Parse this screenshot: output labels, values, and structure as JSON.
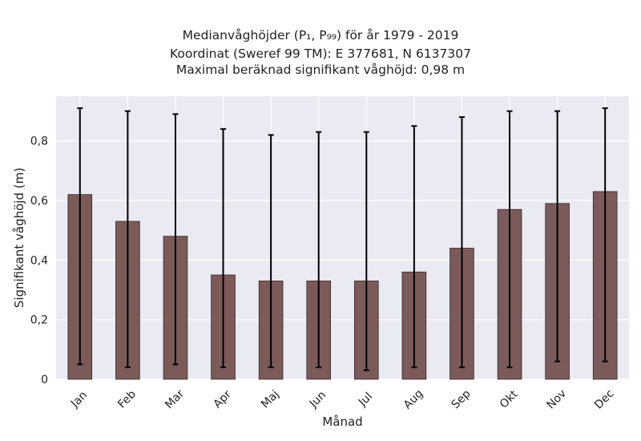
{
  "chart_data": {
    "type": "bar",
    "title_lines": [
      "Medianvåghöjder (P₁, P₉₉) för år 1979 - 2019",
      "Koordinat (Sweref 99 TM): E 377681, N 6137307",
      "Maximal beräknad signifikant våghöjd: 0,98 m"
    ],
    "xlabel": "Månad",
    "ylabel": "Signifikant våghöjd (m)",
    "categories": [
      "Jan",
      "Feb",
      "Mar",
      "Apr",
      "Maj",
      "Jun",
      "Jul",
      "Aug",
      "Sep",
      "Okt",
      "Nov",
      "Dec"
    ],
    "values": [
      0.62,
      0.53,
      0.48,
      0.35,
      0.33,
      0.33,
      0.33,
      0.36,
      0.44,
      0.57,
      0.59,
      0.63
    ],
    "p1": [
      0.05,
      0.04,
      0.05,
      0.04,
      0.04,
      0.04,
      0.03,
      0.04,
      0.04,
      0.04,
      0.06,
      0.06
    ],
    "p99": [
      0.91,
      0.9,
      0.89,
      0.84,
      0.82,
      0.83,
      0.83,
      0.85,
      0.88,
      0.9,
      0.9,
      0.91
    ],
    "ylim": [
      0,
      0.95
    ],
    "yticks": [
      0,
      0.2,
      0.4,
      0.6,
      0.8
    ],
    "ytick_labels": [
      "0",
      "0,2",
      "0,4",
      "0,6",
      "0,8"
    ],
    "grid": true,
    "colors": {
      "bar": "#7b5a5a",
      "bar_edge": "#3a2828",
      "background": "#eaeaf2",
      "grid": "#ffffff",
      "error": "#000000"
    }
  }
}
